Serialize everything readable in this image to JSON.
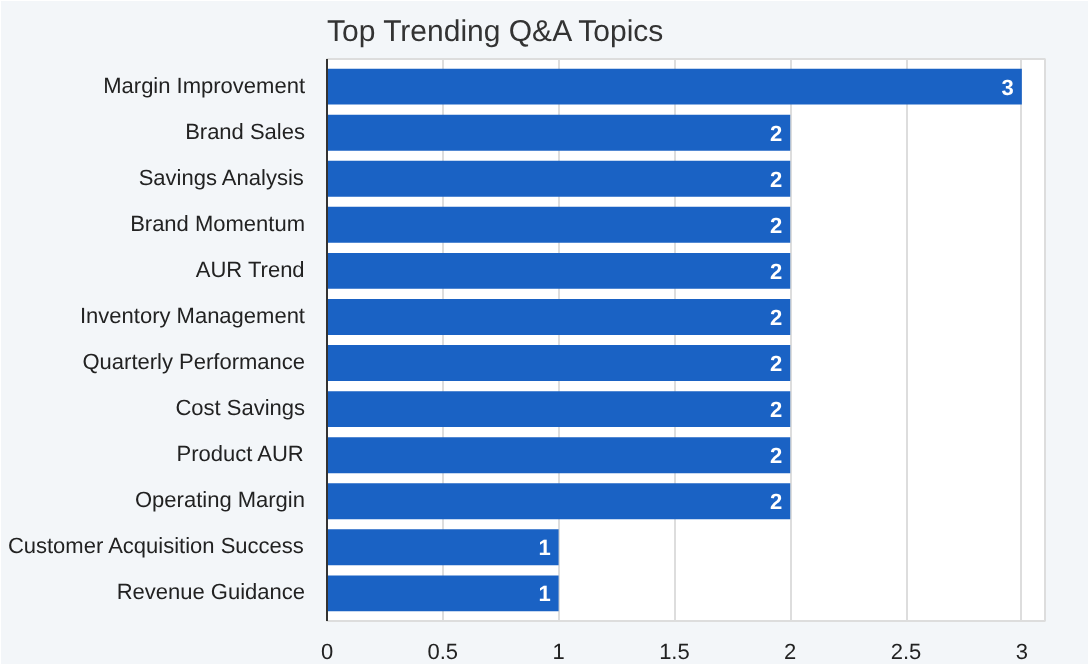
{
  "chart_data": {
    "type": "bar",
    "orientation": "horizontal",
    "title": "Top Trending Q&A Topics",
    "categories": [
      "Margin Improvement",
      "Brand Sales",
      "Savings Analysis",
      "Brand Momentum",
      "AUR Trend",
      "Inventory Management",
      "Quarterly Performance",
      "Cost Savings",
      "Product AUR",
      "Operating Margin",
      "Customer Acquisition Success",
      "Revenue Guidance"
    ],
    "values": [
      3,
      2,
      2,
      2,
      2,
      2,
      2,
      2,
      2,
      2,
      1,
      1
    ],
    "color": "#1a62c4",
    "xlim": [
      0,
      3.1
    ],
    "xticks": [
      0,
      0.5,
      1,
      1.5,
      2,
      2.5,
      3
    ],
    "grid": "x",
    "data_labels": true
  }
}
